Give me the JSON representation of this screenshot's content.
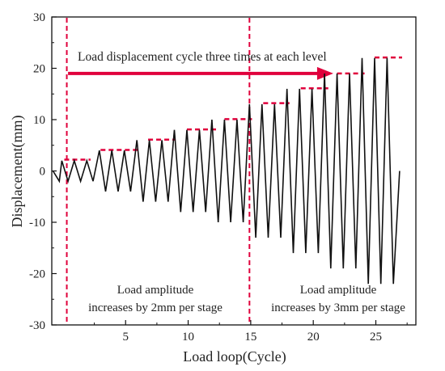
{
  "chart_data": {
    "type": "line",
    "title": "",
    "xlabel": "Load loop(Cycle)",
    "ylabel": "Displacement(mm)",
    "xlim": [
      -0.9,
      28.2
    ],
    "ylim": [
      -30,
      30
    ],
    "x_ticks": [
      5,
      10,
      15,
      20,
      25
    ],
    "y_ticks": [
      -30,
      -20,
      -10,
      0,
      10,
      20,
      30
    ],
    "grid": false,
    "series": [
      {
        "line_color": "#111111",
        "x": [
          -0.8,
          -0.1,
          0.9,
          1.9,
          2.9,
          3.9,
          4.9,
          5.9,
          6.9,
          7.9,
          8.9,
          9.9,
          10.9,
          11.9,
          12.9,
          13.9,
          14.9,
          15.9,
          16.9,
          17.9,
          18.9,
          19.9,
          20.9,
          21.9,
          22.9,
          23.9,
          24.9,
          25.9,
          26.9,
          27.4
        ],
        "peaks_y": [
          2,
          2,
          2,
          4,
          4,
          4,
          6,
          6,
          6,
          8,
          8,
          8,
          10,
          10,
          10,
          13,
          13,
          13,
          16,
          16,
          16,
          19,
          19,
          19,
          22,
          22,
          22
        ],
        "valleys_y": [
          -2,
          -2,
          -2,
          -4,
          -4,
          -4,
          -6,
          -6,
          -6,
          -8,
          -8,
          -8,
          -10,
          -10,
          -10,
          -13,
          -13,
          -13,
          -16,
          -16,
          -16,
          -19,
          -19,
          -19,
          -22,
          -22,
          -22
        ],
        "start_y": 0,
        "initial_dip": -2,
        "end_y": 0
      }
    ],
    "peak_markers": [
      {
        "x_from": 0.1,
        "x_to": 2.2,
        "y": 2.2
      },
      {
        "x_from": 3.0,
        "x_to": 6.0,
        "y": 4.1
      },
      {
        "x_from": 6.8,
        "x_to": 9.0,
        "y": 6.1
      },
      {
        "x_from": 9.9,
        "x_to": 12.3,
        "y": 8.1
      },
      {
        "x_from": 12.9,
        "x_to": 15.1,
        "y": 10.1
      },
      {
        "x_from": 16.0,
        "x_to": 18.1,
        "y": 13.2
      },
      {
        "x_from": 19.0,
        "x_to": 21.2,
        "y": 16.1
      },
      {
        "x_from": 21.9,
        "x_to": 24.1,
        "y": 19.0
      },
      {
        "x_from": 24.9,
        "x_to": 27.1,
        "y": 22.1
      }
    ],
    "stage_lines_x": [
      0.3,
      14.9
    ],
    "accent_color": "#e0003c",
    "arrow": {
      "x_from": 0.4,
      "x_to": 21.6,
      "y": 19.0
    },
    "annotations": {
      "top": "Load displacement cycle three times at each level",
      "left_line1": "Load amplitude",
      "left_line2": "increases by 2mm per stage",
      "right_line1": "Load amplitude",
      "right_line2": "increases by 3mm per stage"
    }
  }
}
